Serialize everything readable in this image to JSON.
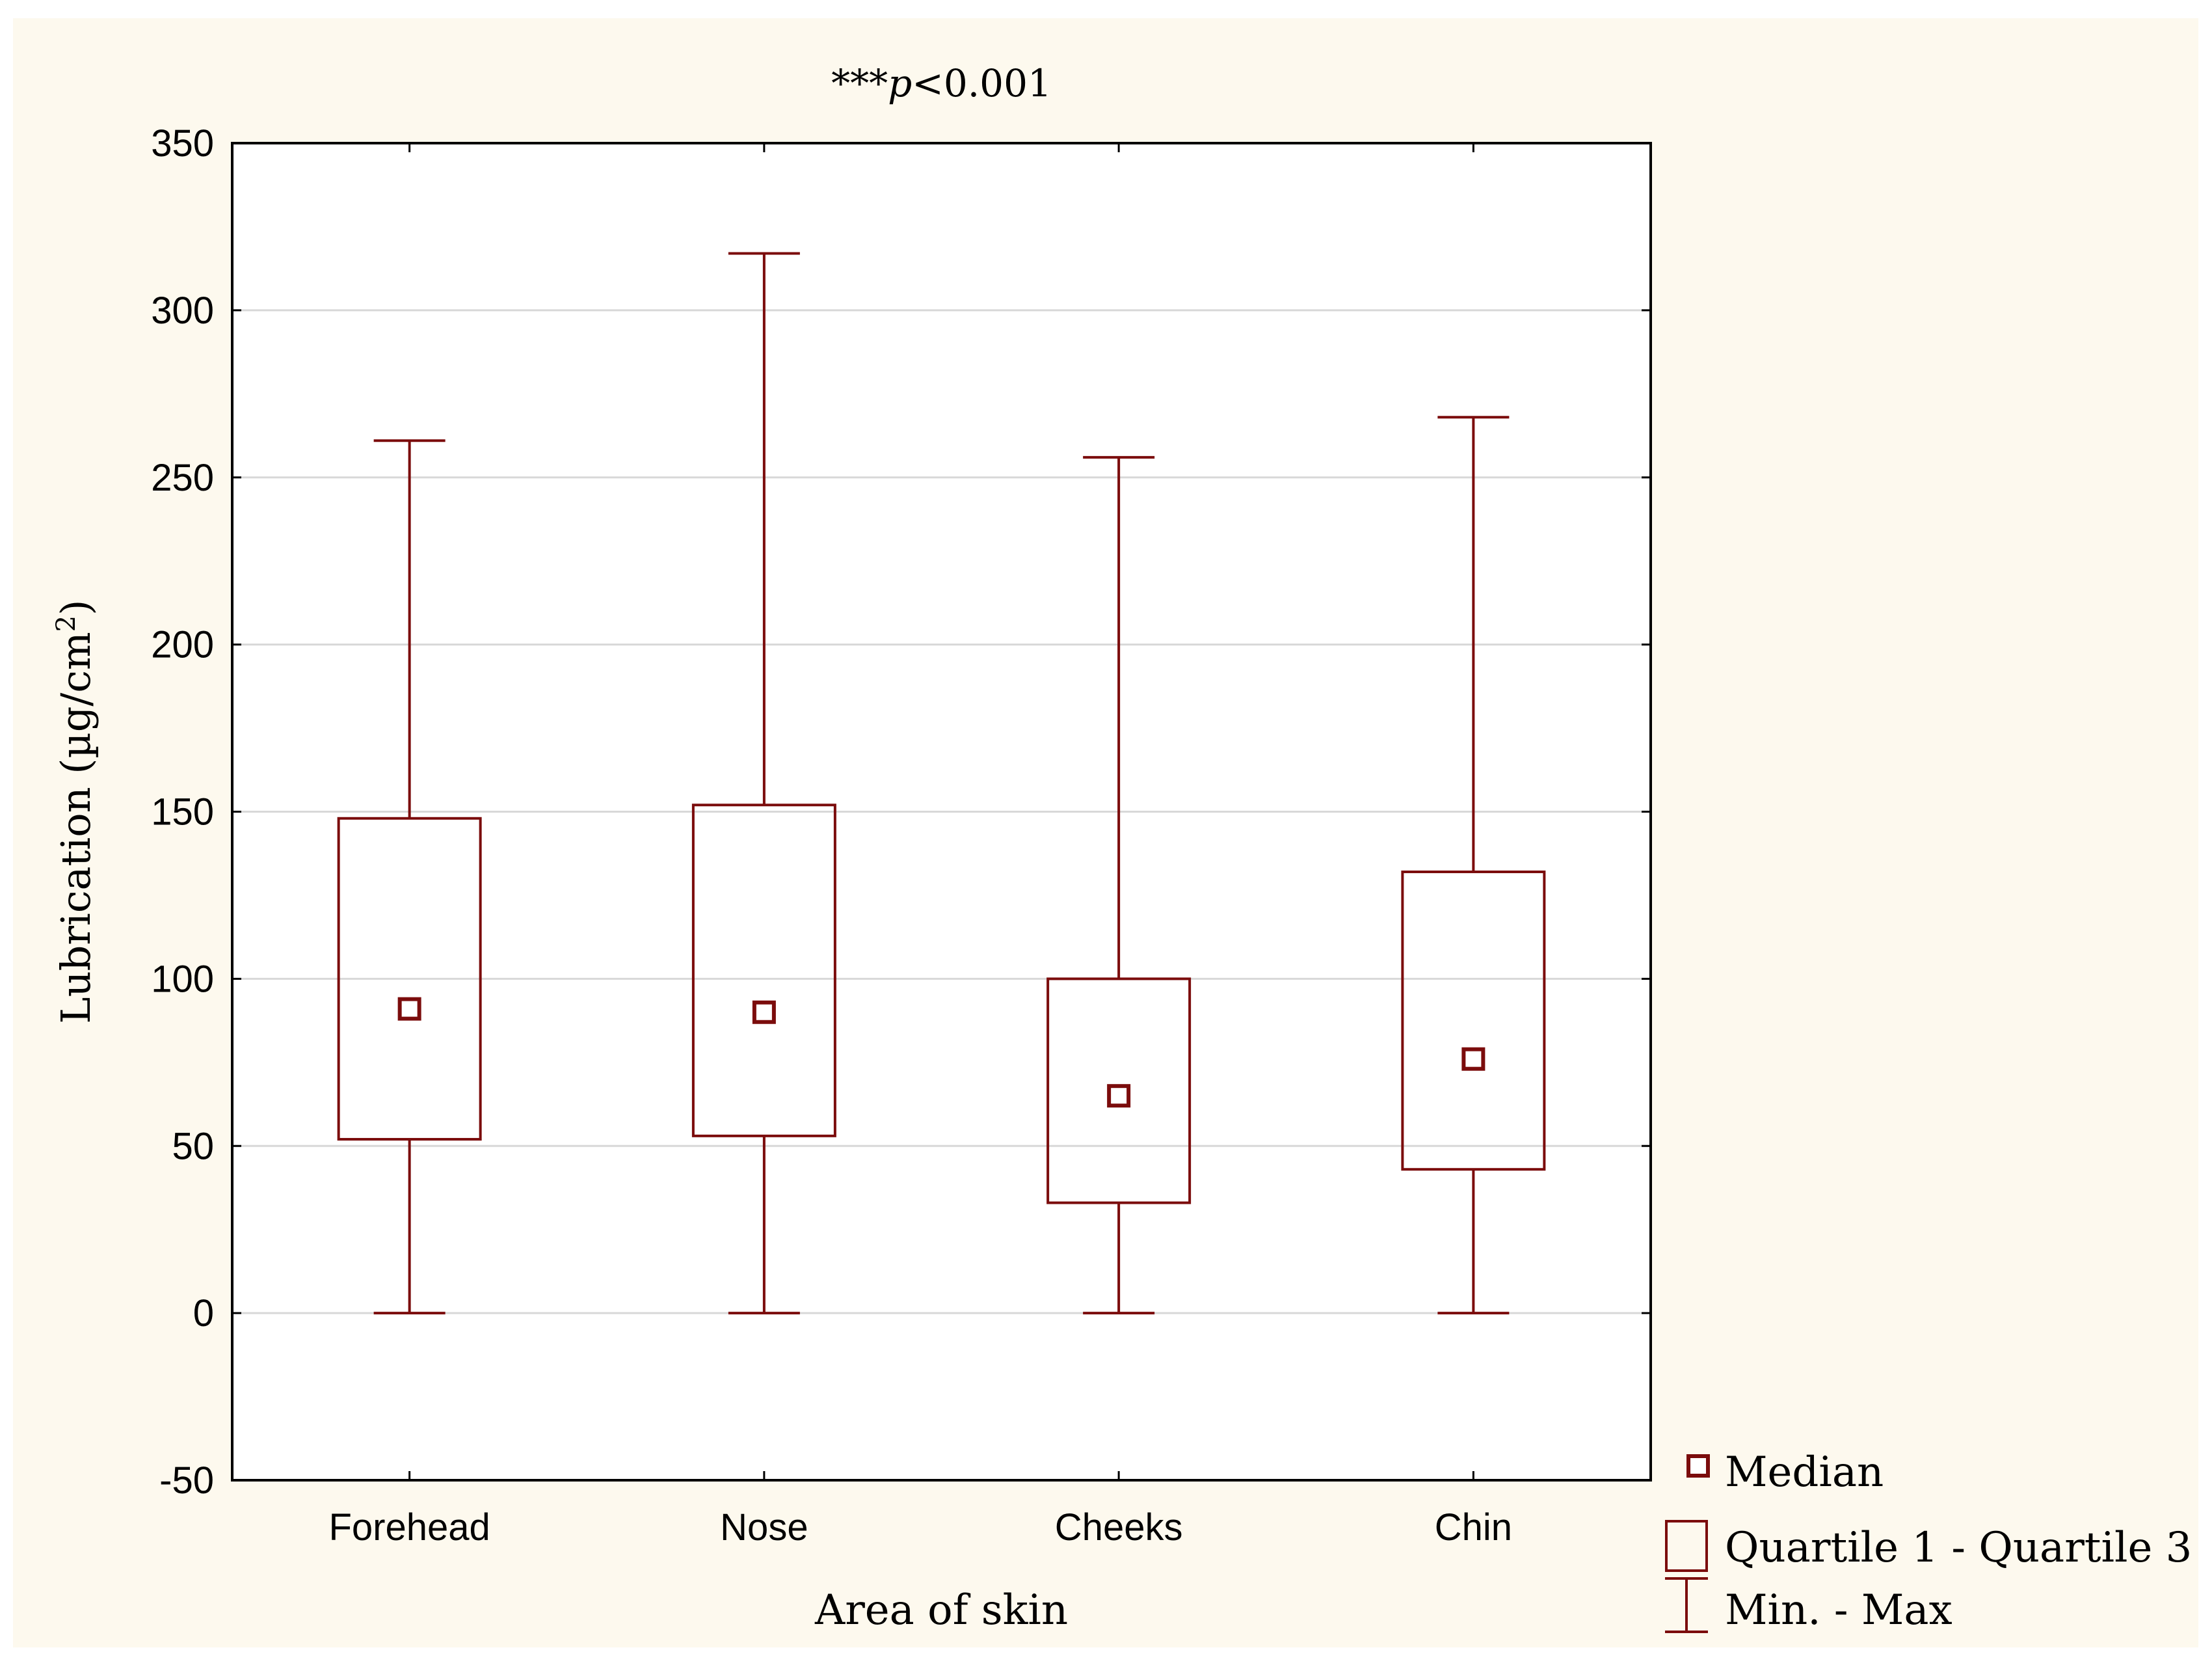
{
  "chart_data": {
    "type": "boxplot",
    "title": "***p<0.001",
    "title_parts": {
      "stars": "***",
      "p": "p",
      "rest": "<0.001"
    },
    "xlabel": "Area of skin",
    "ylabel": "Lubrication (µg/cm",
    "ylabel_sup": "2",
    "ylabel_close": ")",
    "ylim": [
      -50,
      350
    ],
    "yticks": [
      -50,
      0,
      50,
      100,
      150,
      200,
      250,
      300,
      350
    ],
    "grid": true,
    "categories": [
      "Forehead",
      "Nose",
      "Cheeks",
      "Chin"
    ],
    "series": [
      {
        "name": "Forehead",
        "min": 0,
        "q1": 52,
        "median": 91,
        "q3": 148,
        "max": 261
      },
      {
        "name": "Nose",
        "min": 0,
        "q1": 53,
        "median": 90,
        "q3": 152,
        "max": 317
      },
      {
        "name": "Cheeks",
        "min": 0,
        "q1": 33,
        "median": 65,
        "q3": 100,
        "max": 256
      },
      {
        "name": "Chin",
        "min": 0,
        "q1": 43,
        "median": 76,
        "q3": 132,
        "max": 268
      }
    ],
    "legend": {
      "position": "bottom-right",
      "items": [
        {
          "key": "median",
          "label": "Median"
        },
        {
          "key": "quartile",
          "label": "Quartile 1 - Quartile 3"
        },
        {
          "key": "minmax",
          "label": "Min. - Max"
        }
      ]
    },
    "colors": {
      "box": "#7b0c0c",
      "grid": "#d8d8d8",
      "axis": "#000000",
      "background": "#fdf9ee",
      "plot_bg": "#ffffff"
    }
  }
}
